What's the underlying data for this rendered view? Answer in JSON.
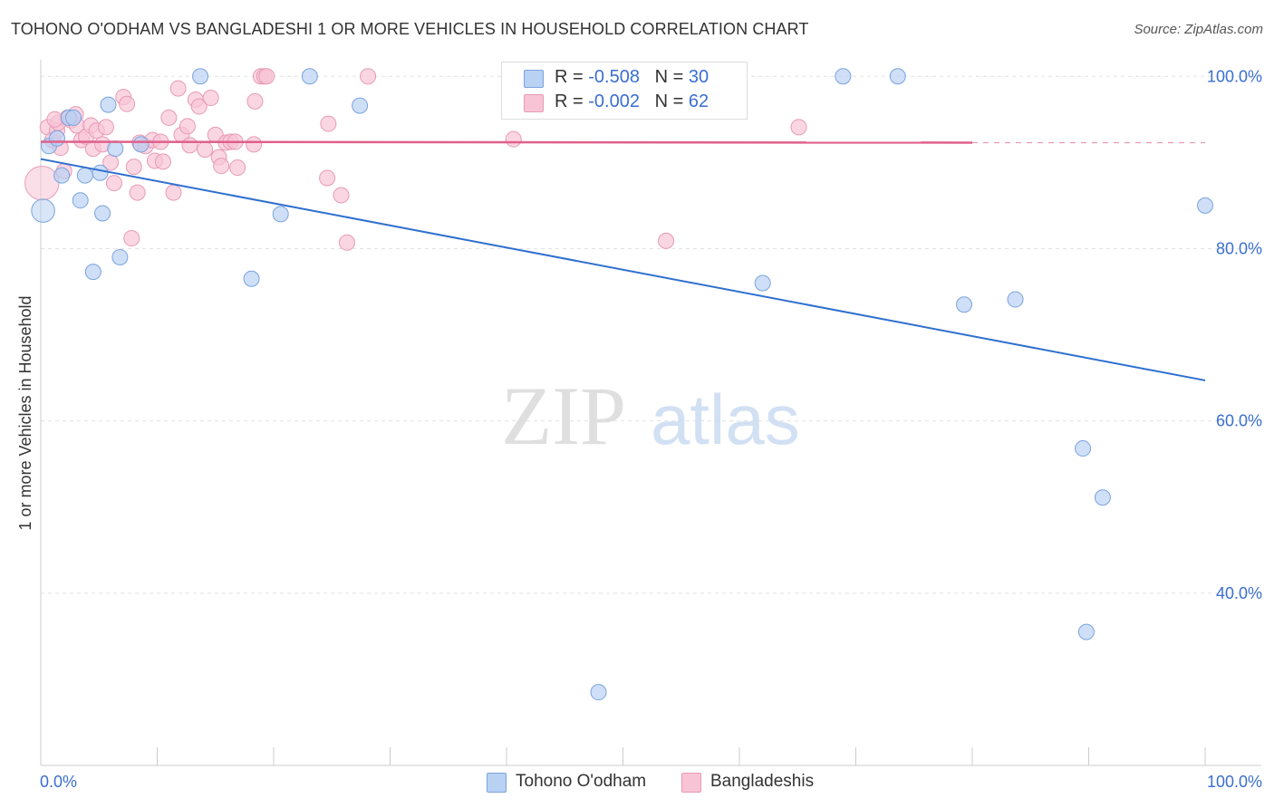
{
  "title": "TOHONO O'ODHAM VS BANGLADESHI 1 OR MORE VEHICLES IN HOUSEHOLD CORRELATION CHART",
  "source": "Source: ZipAtlas.com",
  "watermark": {
    "zip": "ZIP",
    "atlas": "atlas"
  },
  "colors": {
    "blue_fill": "#b9d1f3",
    "blue_stroke": "#7ba3de",
    "blue_line": "#2f6fcf",
    "pink_fill": "#f8c4d5",
    "pink_stroke": "#e89ab5",
    "pink_line": "#e0608a",
    "tick_text": "#3a6fd0",
    "grid": "#e2e2e2"
  },
  "legend_top": [
    {
      "r_label": "R = ",
      "r_value": "-0.508",
      "n_label": "N = ",
      "n_value": "30",
      "color": "#b9d1f3",
      "stroke": "#7ba3de"
    },
    {
      "r_label": "R = ",
      "r_value": "-0.002",
      "n_label": "N = ",
      "n_value": "62",
      "color": "#f8c4d5",
      "stroke": "#e89ab5"
    }
  ],
  "chart_data": {
    "type": "scatter",
    "title": "TOHONO O'ODHAM VS BANGLADESHI 1 OR MORE VEHICLES IN HOUSEHOLD CORRELATION CHART",
    "xlabel": "",
    "ylabel": "1 or more Vehicles in Household",
    "xlim": [
      0,
      100
    ],
    "ylim": [
      20,
      101.5
    ],
    "x_tick_labels": [
      "0.0%",
      "100.0%"
    ],
    "y_ticks": [
      40,
      60,
      80,
      100
    ],
    "y_tick_labels": [
      "40.0%",
      "60.0%",
      "80.0%",
      "100.0%"
    ],
    "legend_position": "bottom-center",
    "series": [
      {
        "name": "Tohono O'odham",
        "color": "#b9d1f3",
        "points": [
          [
            0.7,
            91.9
          ],
          [
            1.4,
            92.8
          ],
          [
            1.8,
            88.5
          ],
          [
            2.4,
            95.2
          ],
          [
            2.8,
            95.2
          ],
          [
            3.4,
            85.6
          ],
          [
            3.8,
            88.5
          ],
          [
            4.5,
            77.3
          ],
          [
            5.1,
            88.8
          ],
          [
            5.3,
            84.1
          ],
          [
            5.8,
            96.7
          ],
          [
            6.4,
            91.6
          ],
          [
            6.8,
            79.0
          ],
          [
            8.6,
            92.1
          ],
          [
            13.7,
            100.0
          ],
          [
            18.1,
            76.5
          ],
          [
            20.6,
            84.0
          ],
          [
            23.1,
            100.0
          ],
          [
            27.4,
            96.6
          ],
          [
            47.9,
            28.5
          ],
          [
            62.0,
            76.0
          ],
          [
            68.9,
            100.0
          ],
          [
            73.6,
            100.0
          ],
          [
            79.3,
            73.5
          ],
          [
            83.7,
            74.1
          ],
          [
            89.5,
            56.8
          ],
          [
            89.8,
            35.5
          ],
          [
            91.2,
            51.1
          ],
          [
            100.0,
            85.0
          ],
          [
            0.2,
            84.4
          ]
        ],
        "sizes": [
          1,
          1,
          1,
          1,
          1,
          1,
          1,
          1,
          1,
          1,
          1,
          1,
          1,
          1,
          1,
          1,
          1,
          1,
          1,
          1,
          1,
          1,
          1,
          1,
          1,
          1,
          1,
          1,
          1,
          1.5
        ],
        "trend": {
          "x0": 0,
          "y0": 90.4,
          "x1": 100,
          "y1": 64.7,
          "style": "solid"
        }
      },
      {
        "name": "Bangladeshis",
        "color": "#f8c4d5",
        "points": [
          [
            0.1,
            87.6
          ],
          [
            0.6,
            94.1
          ],
          [
            1.0,
            92.6
          ],
          [
            1.4,
            93.7
          ],
          [
            1.5,
            94.6
          ],
          [
            1.7,
            91.7
          ],
          [
            2.0,
            89.0
          ],
          [
            2.3,
            95.2
          ],
          [
            2.6,
            94.9
          ],
          [
            3.1,
            94.3
          ],
          [
            3.5,
            92.6
          ],
          [
            3.9,
            93.0
          ],
          [
            4.3,
            94.3
          ],
          [
            4.5,
            91.6
          ],
          [
            4.8,
            93.7
          ],
          [
            5.3,
            92.1
          ],
          [
            5.6,
            94.1
          ],
          [
            6.0,
            90.0
          ],
          [
            6.3,
            87.6
          ],
          [
            7.1,
            97.6
          ],
          [
            7.4,
            96.8
          ],
          [
            7.8,
            81.2
          ],
          [
            8.0,
            89.5
          ],
          [
            8.3,
            86.5
          ],
          [
            8.5,
            92.3
          ],
          [
            9.0,
            91.9
          ],
          [
            9.6,
            92.6
          ],
          [
            9.8,
            90.2
          ],
          [
            10.3,
            92.4
          ],
          [
            10.5,
            90.1
          ],
          [
            11.0,
            95.2
          ],
          [
            11.4,
            86.5
          ],
          [
            11.8,
            98.6
          ],
          [
            12.1,
            93.2
          ],
          [
            12.6,
            94.2
          ],
          [
            12.8,
            92.0
          ],
          [
            13.3,
            97.3
          ],
          [
            13.6,
            96.5
          ],
          [
            14.1,
            91.5
          ],
          [
            14.6,
            97.5
          ],
          [
            15.0,
            93.2
          ],
          [
            15.3,
            90.6
          ],
          [
            15.5,
            89.6
          ],
          [
            15.9,
            92.3
          ],
          [
            16.3,
            92.4
          ],
          [
            16.7,
            92.4
          ],
          [
            16.9,
            89.4
          ],
          [
            18.3,
            92.1
          ],
          [
            18.4,
            97.1
          ],
          [
            18.9,
            100.0
          ],
          [
            19.2,
            100.0
          ],
          [
            19.4,
            100.0
          ],
          [
            24.6,
            88.2
          ],
          [
            24.7,
            94.5
          ],
          [
            25.8,
            86.2
          ],
          [
            26.3,
            80.7
          ],
          [
            28.1,
            100.0
          ],
          [
            40.6,
            92.7
          ],
          [
            53.7,
            80.9
          ],
          [
            65.1,
            94.1
          ],
          [
            1.2,
            95.0
          ],
          [
            3.0,
            95.6
          ]
        ],
        "sizes": [
          2.2,
          1,
          1,
          1,
          1,
          1,
          1,
          1,
          1,
          1,
          1,
          1,
          1,
          1,
          1,
          1,
          1,
          1,
          1,
          1,
          1,
          1,
          1,
          1,
          1,
          1,
          1,
          1,
          1,
          1,
          1,
          1,
          1,
          1,
          1,
          1,
          1,
          1,
          1,
          1,
          1,
          1,
          1,
          1,
          1,
          1,
          1,
          1,
          1,
          1,
          1,
          1,
          1,
          1,
          1,
          1,
          1,
          1,
          1,
          1,
          1,
          1
        ],
        "trend": {
          "x0": 0,
          "y0": 92.4,
          "x1": 80,
          "y1": 92.3,
          "style": "solid",
          "dashed_to": 100
        }
      }
    ]
  }
}
